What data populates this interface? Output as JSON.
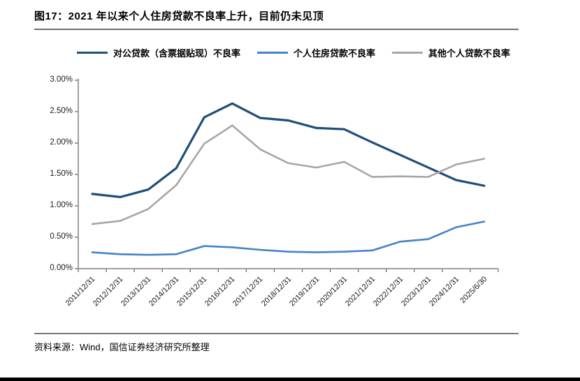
{
  "figure": {
    "title": "图17：2021 年以来个人住房贷款不良率上升，目前仍未见顶",
    "source": "资料来源：Wind，国信证券经济研究所整理"
  },
  "chart_data": {
    "type": "line",
    "title": "图17：2021 年以来个人住房贷款不良率上升，目前仍未见顶",
    "categories": [
      "2011/12/31",
      "2012/12/31",
      "2013/12/31",
      "2014/12/31",
      "2015/12/31",
      "2016/12/31",
      "2017/12/31",
      "2018/12/31",
      "2019/12/31",
      "2020/12/31",
      "2021/12/31",
      "2022/12/31",
      "2023/12/31",
      "2024/12/31",
      "2025/6/30"
    ],
    "series": [
      {
        "name": "对公贷款（含票据贴现）不良率",
        "color": "#1F4E79",
        "stroke_width": 3.2,
        "values": [
          1.19,
          1.14,
          1.26,
          1.6,
          2.41,
          2.63,
          2.4,
          2.36,
          2.24,
          2.22,
          2.01,
          1.81,
          1.61,
          1.41,
          1.32
        ]
      },
      {
        "name": "个人住房贷款不良率",
        "color": "#4583C4",
        "stroke_width": 2.6,
        "values": [
          0.26,
          0.23,
          0.22,
          0.23,
          0.36,
          0.34,
          0.3,
          0.27,
          0.26,
          0.27,
          0.29,
          0.43,
          0.47,
          0.66,
          0.75
        ]
      },
      {
        "name": "其他个人贷款不良率",
        "color": "#A6A6A6",
        "stroke_width": 2.6,
        "values": [
          0.71,
          0.76,
          0.95,
          1.33,
          1.99,
          2.28,
          1.9,
          1.68,
          1.61,
          1.7,
          1.46,
          1.47,
          1.46,
          1.66,
          1.75
        ]
      }
    ],
    "y_tick_labels": [
      "0.00%",
      "0.50%",
      "1.00%",
      "1.50%",
      "2.00%",
      "2.50%",
      "3.00%"
    ],
    "ylim": [
      0,
      3
    ],
    "y_tick_step": 0.5,
    "xlabel": "",
    "ylabel": "",
    "legend_position": "top",
    "grid": false,
    "axis_color": "#808080"
  }
}
